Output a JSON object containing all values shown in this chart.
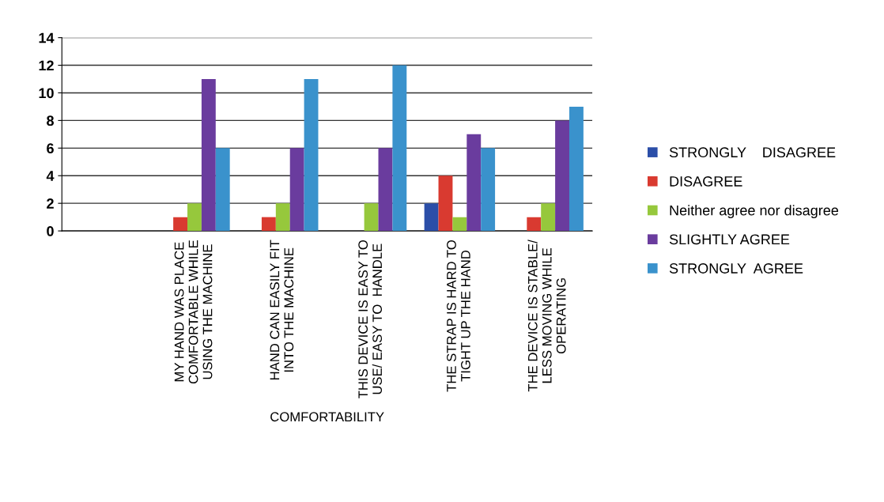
{
  "chart_data": {
    "type": "bar",
    "xlabel": "COMFORTABILITY",
    "categories": [
      null,
      "MY HAND WAS PLACE\nCOMFORTABLE WHILE\nUSING THE MACHINE",
      "HAND CAN EASILY FIT\nINTO THE MACHINE",
      "THIS DEVICE IS EASY TO\nUSE/ EASY TO  HANDLE",
      "THE STRAP IS HARD TO\nTIGHT UP THE HAND",
      "THE DEVICE IS STABLE/\nLESS MOVING WHILE\nOPERATING"
    ],
    "series": [
      {
        "name": "STRONGLY    DISAGREE",
        "color": "#2b4ea8",
        "values": [
          null,
          0,
          0,
          0,
          2,
          0
        ]
      },
      {
        "name": "DISAGREE",
        "color": "#d93a30",
        "values": [
          null,
          1,
          1,
          0,
          4,
          1
        ]
      },
      {
        "name": "Neither agree nor disagree",
        "color": "#96c83c",
        "values": [
          null,
          2,
          2,
          2,
          1,
          2
        ]
      },
      {
        "name": "SLIGHTLY AGREE",
        "color": "#6a3c9e",
        "values": [
          null,
          11,
          6,
          6,
          7,
          8
        ]
      },
      {
        "name": "STRONGLY  AGREE",
        "color": "#3a92cc",
        "values": [
          null,
          6,
          11,
          12,
          6,
          9
        ]
      }
    ],
    "ylim": [
      0,
      14
    ],
    "yticks": [
      0,
      2,
      4,
      6,
      8,
      10,
      12,
      14
    ],
    "grid": "y",
    "legend": "right"
  }
}
